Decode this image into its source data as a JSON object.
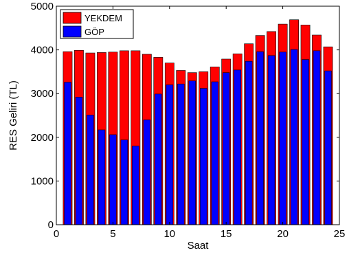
{
  "chart_data": {
    "type": "bar",
    "x": [
      1,
      2,
      3,
      4,
      5,
      6,
      7,
      8,
      9,
      10,
      11,
      12,
      13,
      14,
      15,
      16,
      17,
      18,
      19,
      20,
      21,
      22,
      23,
      24
    ],
    "series": [
      {
        "name": "YEKDEM",
        "color": "#ff0000",
        "values": [
          3960,
          3990,
          3930,
          3940,
          3950,
          3980,
          3980,
          3900,
          3830,
          3700,
          3530,
          3480,
          3500,
          3610,
          3790,
          3910,
          4140,
          4330,
          4420,
          4590,
          4690,
          4570,
          4340,
          4070
        ]
      },
      {
        "name": "GÖP",
        "color": "#0000ff",
        "values": [
          3260,
          2920,
          2510,
          2170,
          2060,
          1940,
          1800,
          2400,
          2990,
          3200,
          3220,
          3290,
          3120,
          3270,
          3480,
          3540,
          3740,
          3960,
          3870,
          3950,
          4010,
          3780,
          3980,
          3520
        ]
      }
    ],
    "xlabel": "Saat",
    "ylabel": "RES Geliri (TL)",
    "xlim": [
      0,
      25
    ],
    "ylim": [
      0,
      5000
    ],
    "xticks": [
      "0",
      "5",
      "10",
      "15",
      "20",
      "25"
    ],
    "yticks": [
      "0",
      "1000",
      "2000",
      "3000",
      "4000",
      "5000"
    ],
    "grid": false,
    "legend_position": "top-left"
  }
}
